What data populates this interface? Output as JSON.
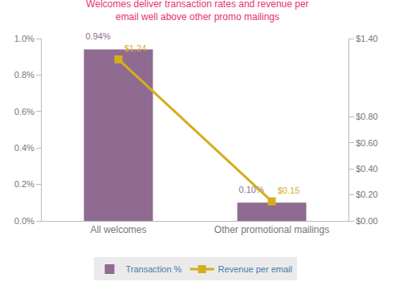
{
  "chart_data": {
    "type": "bar",
    "title": "Welcomes deliver transaction rates and revenue per email well above other promo mailings",
    "categories": [
      "All welcomes",
      "Other promotional mailings"
    ],
    "series": [
      {
        "name": "Transaction %",
        "type": "bar",
        "color": "#8f6b92",
        "values": [
          0.94,
          0.1
        ],
        "value_labels": [
          "0.94%",
          "0.10%"
        ]
      },
      {
        "name": "Revenue per email",
        "type": "line",
        "axis": "y2",
        "color": "#d4ae1c",
        "marker": "square",
        "values": [
          1.24,
          0.15
        ],
        "value_labels": [
          "$1.24",
          "$0.15"
        ]
      }
    ],
    "ylim": [
      0,
      1.0
    ],
    "yticks": [
      {
        "value": 0,
        "label": "0.0%"
      },
      {
        "value": 0.2,
        "label": "0.2%"
      },
      {
        "value": 0.4,
        "label": "0.4%"
      },
      {
        "value": 0.6,
        "label": "0.6%"
      },
      {
        "value": 0.8,
        "label": "0.8%"
      },
      {
        "value": 1.0,
        "label": "1.0%"
      }
    ],
    "y2lim": [
      0,
      1.4
    ],
    "y2ticks": [
      {
        "value": 0,
        "label": "$0.00"
      },
      {
        "value": 0.2,
        "label": "$0.20"
      },
      {
        "value": 0.4,
        "label": "$0.40"
      },
      {
        "value": 0.6,
        "label": "$0.60"
      },
      {
        "value": 0.8,
        "label": "$0.80"
      },
      {
        "value": 1.4,
        "label": "$1.40"
      }
    ],
    "grid": false,
    "legend": "bottom",
    "data_labels": true
  }
}
